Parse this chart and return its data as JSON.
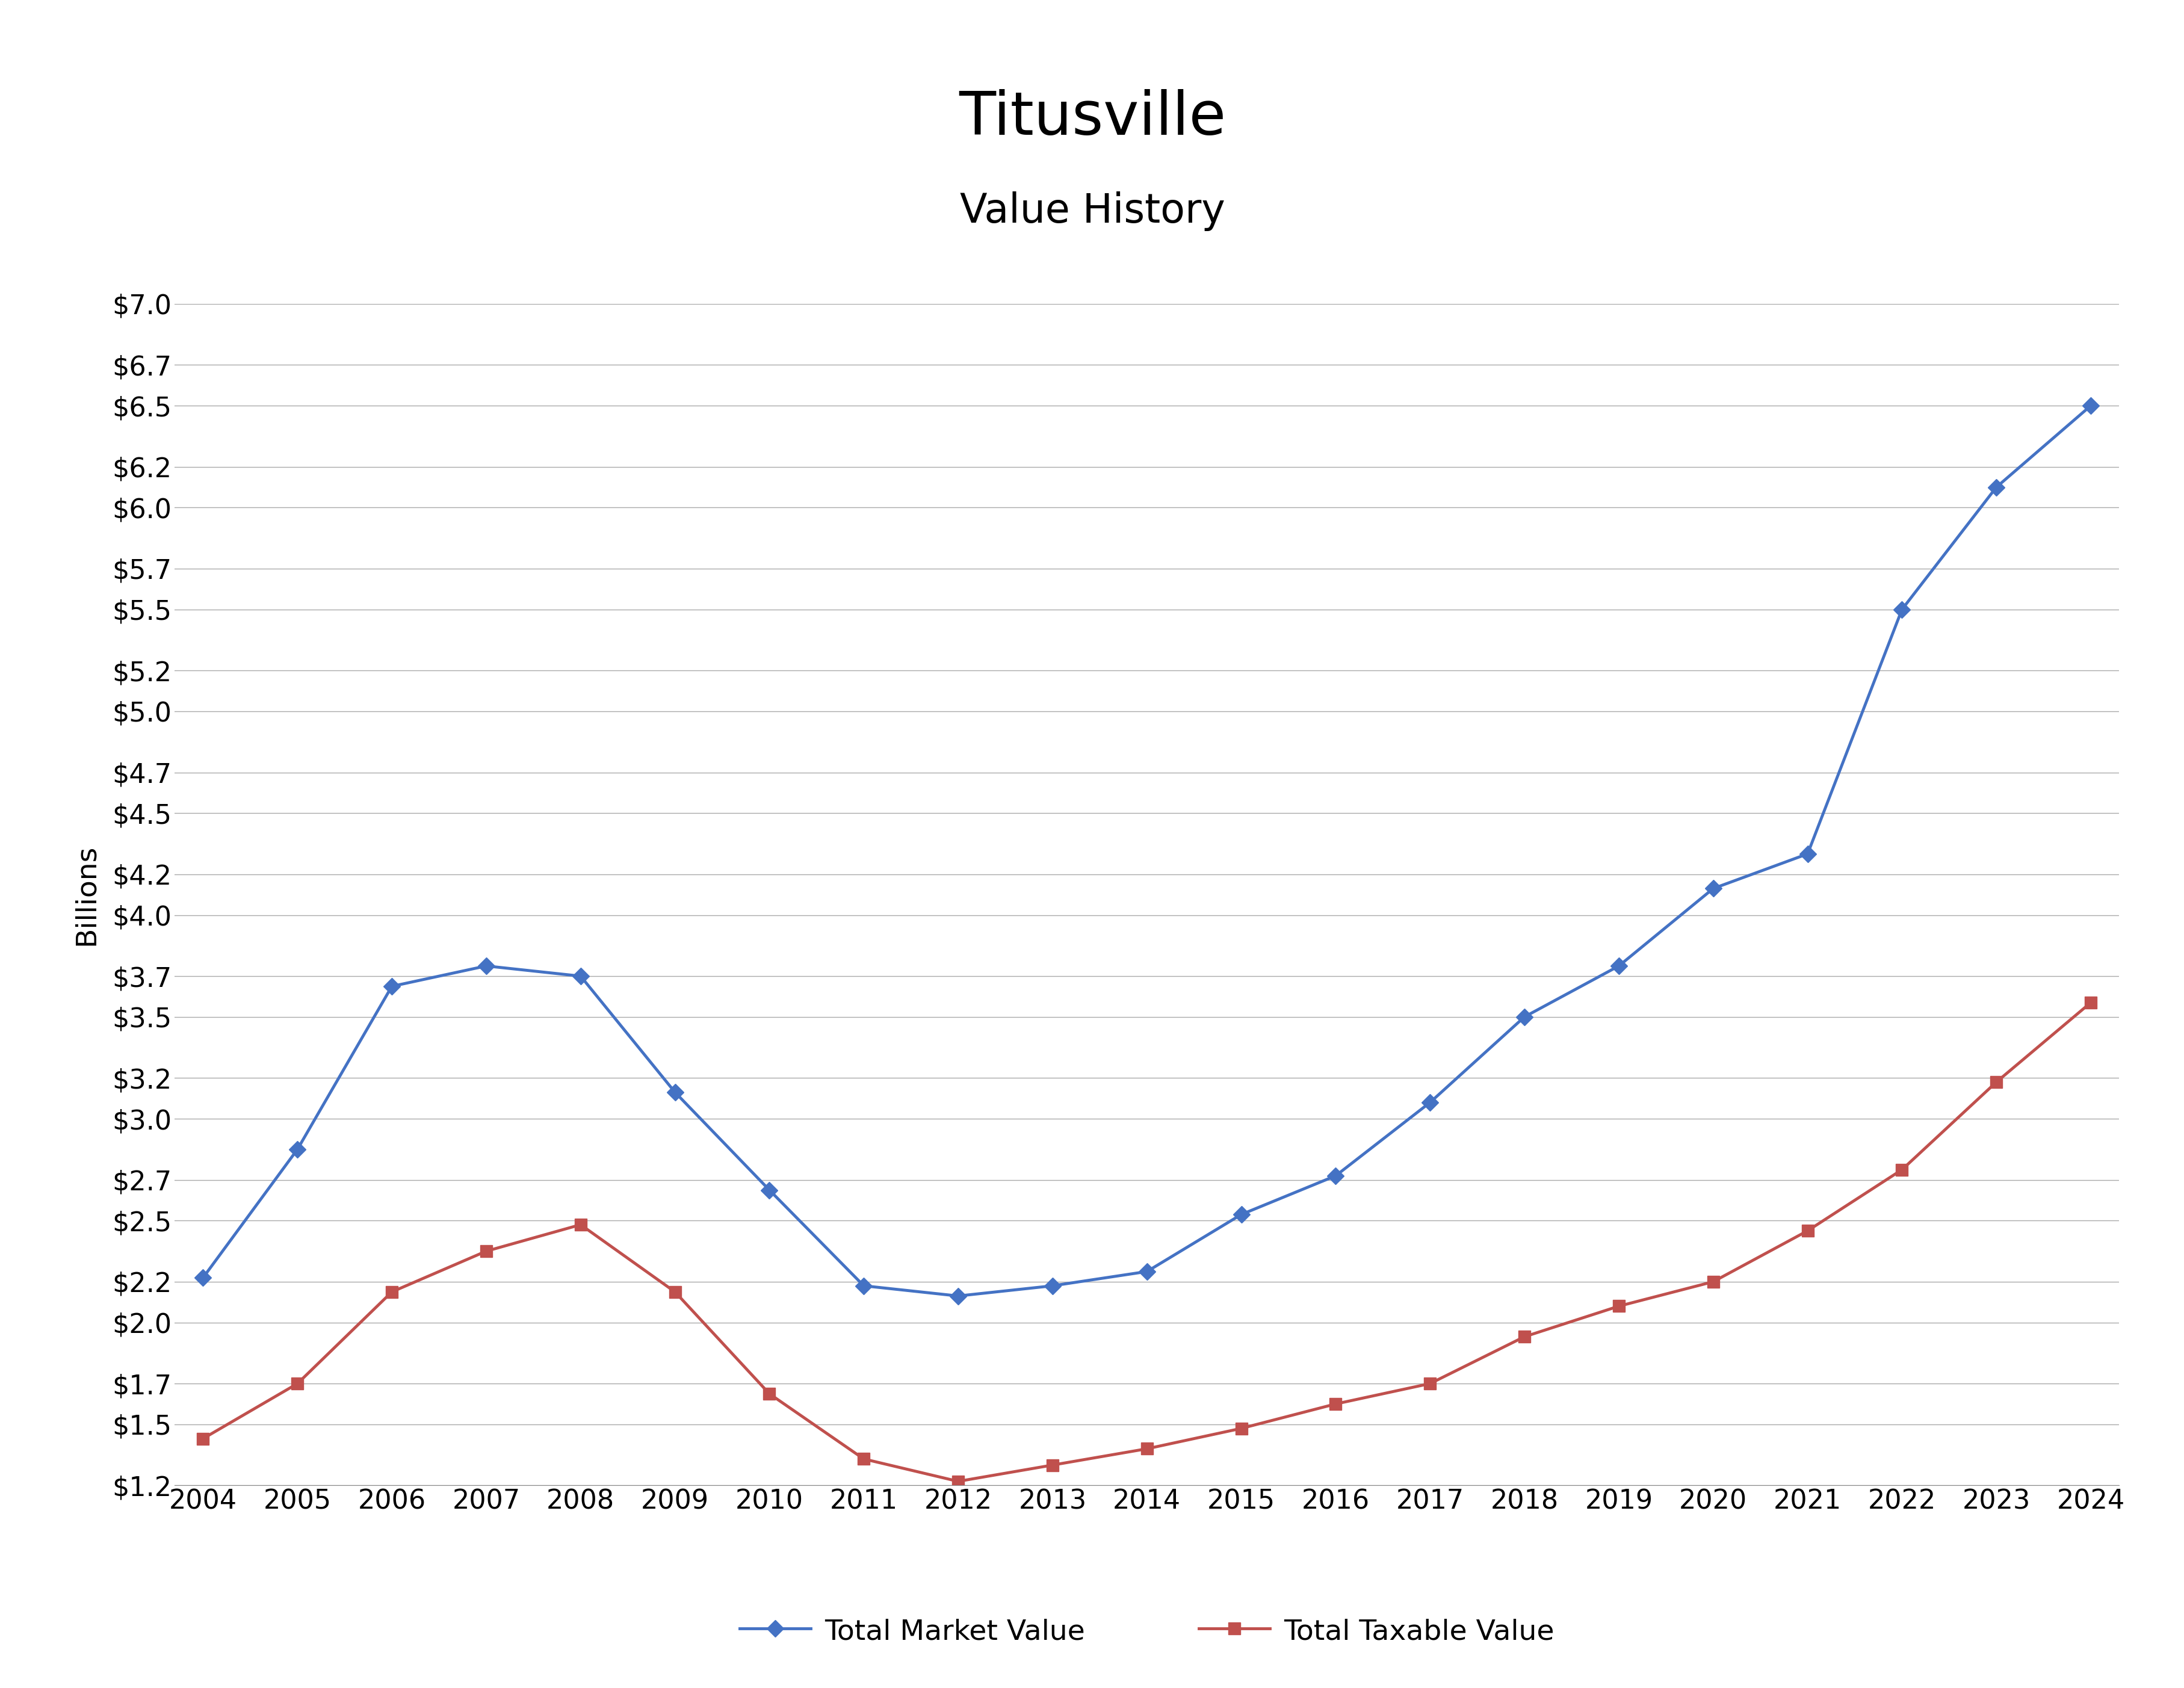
{
  "title": "Titusville",
  "subtitle": "Value History",
  "xlabel": "",
  "ylabel": "Billions",
  "years": [
    2004,
    2005,
    2006,
    2007,
    2008,
    2009,
    2010,
    2011,
    2012,
    2013,
    2014,
    2015,
    2016,
    2017,
    2018,
    2019,
    2020,
    2021,
    2022,
    2023,
    2024
  ],
  "market_value": [
    2.22,
    2.85,
    3.65,
    3.75,
    3.7,
    3.13,
    2.65,
    2.18,
    2.13,
    2.18,
    2.25,
    2.53,
    2.72,
    3.08,
    3.5,
    3.75,
    4.13,
    4.3,
    5.5,
    6.1,
    6.5
  ],
  "taxable_value": [
    1.43,
    1.7,
    2.15,
    2.35,
    2.48,
    2.15,
    1.65,
    1.33,
    1.22,
    1.3,
    1.38,
    1.48,
    1.6,
    1.7,
    1.93,
    2.08,
    2.2,
    2.45,
    2.75,
    3.18,
    3.57
  ],
  "market_color": "#4472C4",
  "taxable_color": "#C0504D",
  "yticks": [
    1.2,
    1.5,
    1.7,
    2.0,
    2.2,
    2.5,
    2.7,
    3.0,
    3.2,
    3.5,
    3.7,
    4.0,
    4.2,
    4.5,
    4.7,
    5.0,
    5.2,
    5.5,
    5.7,
    6.0,
    6.2,
    6.5,
    6.7,
    7.0
  ],
  "ylim_min": 1.2,
  "ylim_max": 7.0,
  "grid_color": "#AAAAAA",
  "background_color": "#FFFFFF",
  "title_fontsize": 72,
  "subtitle_fontsize": 48,
  "axis_label_fontsize": 34,
  "tick_fontsize": 32,
  "legend_fontsize": 34,
  "line_width": 3.5,
  "marker_size": 14
}
